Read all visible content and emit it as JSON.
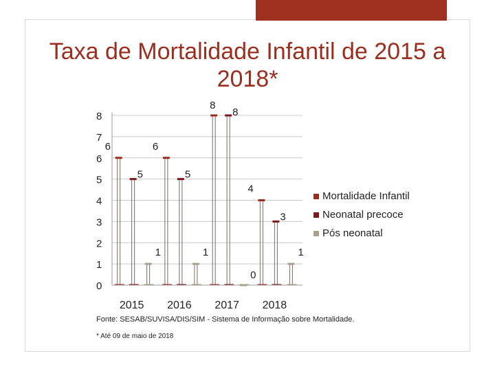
{
  "title": "Taxa de Mortalidade Infantil de 2015 a 2018*",
  "source": "Fonte: SESAB/SUVISA/DIS/SIM - Sistema de Informação sobre Mortalidade.",
  "note": "* Até 09 de maio de 2018",
  "colors": {
    "accent": "#a03020",
    "title": "#9a2e1f",
    "series": [
      "#9a2e1f",
      "#7a1a1a",
      "#a8a28a"
    ]
  },
  "chart_data": {
    "type": "bar",
    "title": "",
    "categories": [
      "2015",
      "2016",
      "2017",
      "2018"
    ],
    "y_ticks": [
      "0",
      "1",
      "2",
      "3",
      "4",
      "5",
      "6",
      "7",
      "8"
    ],
    "ylim": [
      0,
      8
    ],
    "grid": true,
    "legend_position": "right",
    "series": [
      {
        "name": "Mortalidade Infantil",
        "values": [
          6,
          6,
          8,
          4
        ],
        "labels": [
          "6",
          "6",
          "8",
          "4"
        ]
      },
      {
        "name": "Neonatal precoce",
        "values": [
          5,
          5,
          8,
          3
        ],
        "labels": [
          "5",
          "5",
          "8",
          "3"
        ]
      },
      {
        "name": "Pós neonatal",
        "values": [
          1,
          1,
          0,
          1
        ],
        "labels": [
          "1",
          "1",
          "0",
          "1"
        ]
      }
    ]
  }
}
